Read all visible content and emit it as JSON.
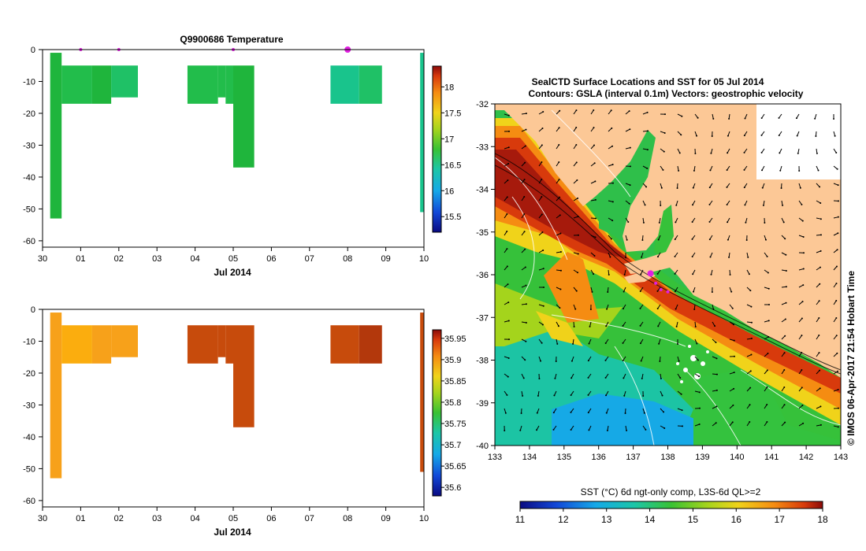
{
  "profiles_title": "Q9900686  Temperature",
  "time_axis": {
    "ticks": [
      "30",
      "01",
      "02",
      "03",
      "04",
      "05",
      "06",
      "07",
      "08",
      "09",
      "10"
    ],
    "label": "Jul 2014"
  },
  "depth_axis": {
    "ticks": [
      "0",
      "-10",
      "-20",
      "-30",
      "-40",
      "-50",
      "-60"
    ],
    "ylim": [
      -62,
      0
    ]
  },
  "temperature_colorbar": {
    "ticks": [
      "15.5",
      "16",
      "16.5",
      "17",
      "17.5",
      "18"
    ],
    "range": [
      15.2,
      18.4
    ]
  },
  "salinity_colorbar": {
    "ticks": [
      "35.6",
      "35.65",
      "35.7",
      "35.75",
      "35.8",
      "35.85",
      "35.9",
      "35.95"
    ],
    "range": [
      35.58,
      35.97
    ]
  },
  "colors": {
    "land": "#fcc896",
    "profile_marker": "#e020e0",
    "temperature_blocks": [
      "#1fb53c",
      "#22bd4b",
      "#1fc166",
      "#19c48c"
    ],
    "salinity_blocks": [
      "#f7a11a",
      "#fbad0e",
      "#c74b0c",
      "#b3380c"
    ]
  },
  "map": {
    "title": "SealCTD Surface Locations and SST for 05 Jul 2014",
    "subtitle": "Contours: GSLA (interval 0.1m) Vectors: geostrophic velocity",
    "lon_ticks": [
      "133",
      "134",
      "135",
      "136",
      "137",
      "138",
      "139",
      "140",
      "141",
      "142",
      "143"
    ],
    "lat_ticks": [
      "-32",
      "-33",
      "-34",
      "-35",
      "-36",
      "-37",
      "-38",
      "-39",
      "-40"
    ],
    "lon_range": [
      133,
      143
    ],
    "lat_range": [
      -40,
      -32
    ],
    "credit": "© IMOS 06-Apr-2017 21:54 Hobart Time",
    "sst_colorbar_label": "SST (°C) 6d ngt-only comp, L3S-6d QL>=2",
    "sst_ticks": [
      "11",
      "12",
      "13",
      "14",
      "15",
      "16",
      "17",
      "18"
    ],
    "sst_range": [
      11,
      18
    ]
  },
  "chart_data": [
    {
      "type": "heatmap",
      "title": "Q9900686  Temperature",
      "xlabel": "Jul 2014",
      "ylabel": "",
      "x_unit": "days since 30 Jun 2014",
      "ylim": [
        -62,
        0
      ],
      "profile_markers_x": [
        1,
        2,
        5,
        8
      ],
      "cells": [
        {
          "x0": 0.2,
          "x1": 0.5,
          "y0": -53,
          "y1": -1,
          "c": 0
        },
        {
          "x0": 0.5,
          "x1": 1.3,
          "y0": -17,
          "y1": -5,
          "c": 1
        },
        {
          "x0": 1.3,
          "x1": 1.8,
          "y0": -17,
          "y1": -5,
          "c": 0
        },
        {
          "x0": 1.8,
          "x1": 2.5,
          "y0": -15,
          "y1": -5,
          "c": 2
        },
        {
          "x0": 3.8,
          "x1": 4.6,
          "y0": -17,
          "y1": -5,
          "c": 1
        },
        {
          "x0": 4.6,
          "x1": 4.8,
          "y0": -15,
          "y1": -5,
          "c": 1
        },
        {
          "x0": 4.8,
          "x1": 5.0,
          "y0": -17,
          "y1": -5,
          "c": 1
        },
        {
          "x0": 5.0,
          "x1": 5.55,
          "y0": -37,
          "y1": -5,
          "c": 0
        },
        {
          "x0": 7.55,
          "x1": 8.3,
          "y0": -17,
          "y1": -5,
          "c": 3
        },
        {
          "x0": 8.3,
          "x1": 8.9,
          "y0": -17,
          "y1": -5,
          "c": 2
        },
        {
          "x0": 9.9,
          "x1": 10.0,
          "y0": -51,
          "y1": -1,
          "c": 3
        }
      ]
    },
    {
      "type": "heatmap",
      "title": "",
      "xlabel": "Jul 2014",
      "ylabel": "",
      "x_unit": "days since 30 Jun 2014",
      "ylim": [
        -62,
        0
      ],
      "cells": [
        {
          "x0": 0.2,
          "x1": 0.5,
          "y0": -53,
          "y1": -1,
          "c": 0
        },
        {
          "x0": 0.5,
          "x1": 1.3,
          "y0": -17,
          "y1": -5,
          "c": 1
        },
        {
          "x0": 1.3,
          "x1": 1.8,
          "y0": -17,
          "y1": -5,
          "c": 0
        },
        {
          "x0": 1.8,
          "x1": 2.5,
          "y0": -15,
          "y1": -5,
          "c": 0
        },
        {
          "x0": 3.8,
          "x1": 4.6,
          "y0": -17,
          "y1": -5,
          "c": 2
        },
        {
          "x0": 4.6,
          "x1": 4.8,
          "y0": -15,
          "y1": -5,
          "c": 2
        },
        {
          "x0": 4.8,
          "x1": 5.0,
          "y0": -17,
          "y1": -5,
          "c": 2
        },
        {
          "x0": 5.0,
          "x1": 5.55,
          "y0": -37,
          "y1": -5,
          "c": 2
        },
        {
          "x0": 7.55,
          "x1": 8.3,
          "y0": -17,
          "y1": -5,
          "c": 2
        },
        {
          "x0": 8.3,
          "x1": 8.9,
          "y0": -17,
          "y1": -5,
          "c": 3
        },
        {
          "x0": 9.9,
          "x1": 10.0,
          "y0": -51,
          "y1": -1,
          "c": 2
        }
      ]
    },
    {
      "type": "heatmap",
      "title": "SealCTD Surface Locations and SST for 05 Jul 2014",
      "xlabel": "",
      "ylabel": "",
      "xlim": [
        133,
        143
      ],
      "ylim": [
        -40,
        -32
      ],
      "seal_locations": [
        {
          "lon": 137.5,
          "lat": -35.97
        },
        {
          "lon": 137.65,
          "lat": -36.2
        },
        {
          "lon": 137.8,
          "lat": -36.35
        },
        {
          "lon": 138.0,
          "lat": -36.4
        }
      ]
    }
  ]
}
